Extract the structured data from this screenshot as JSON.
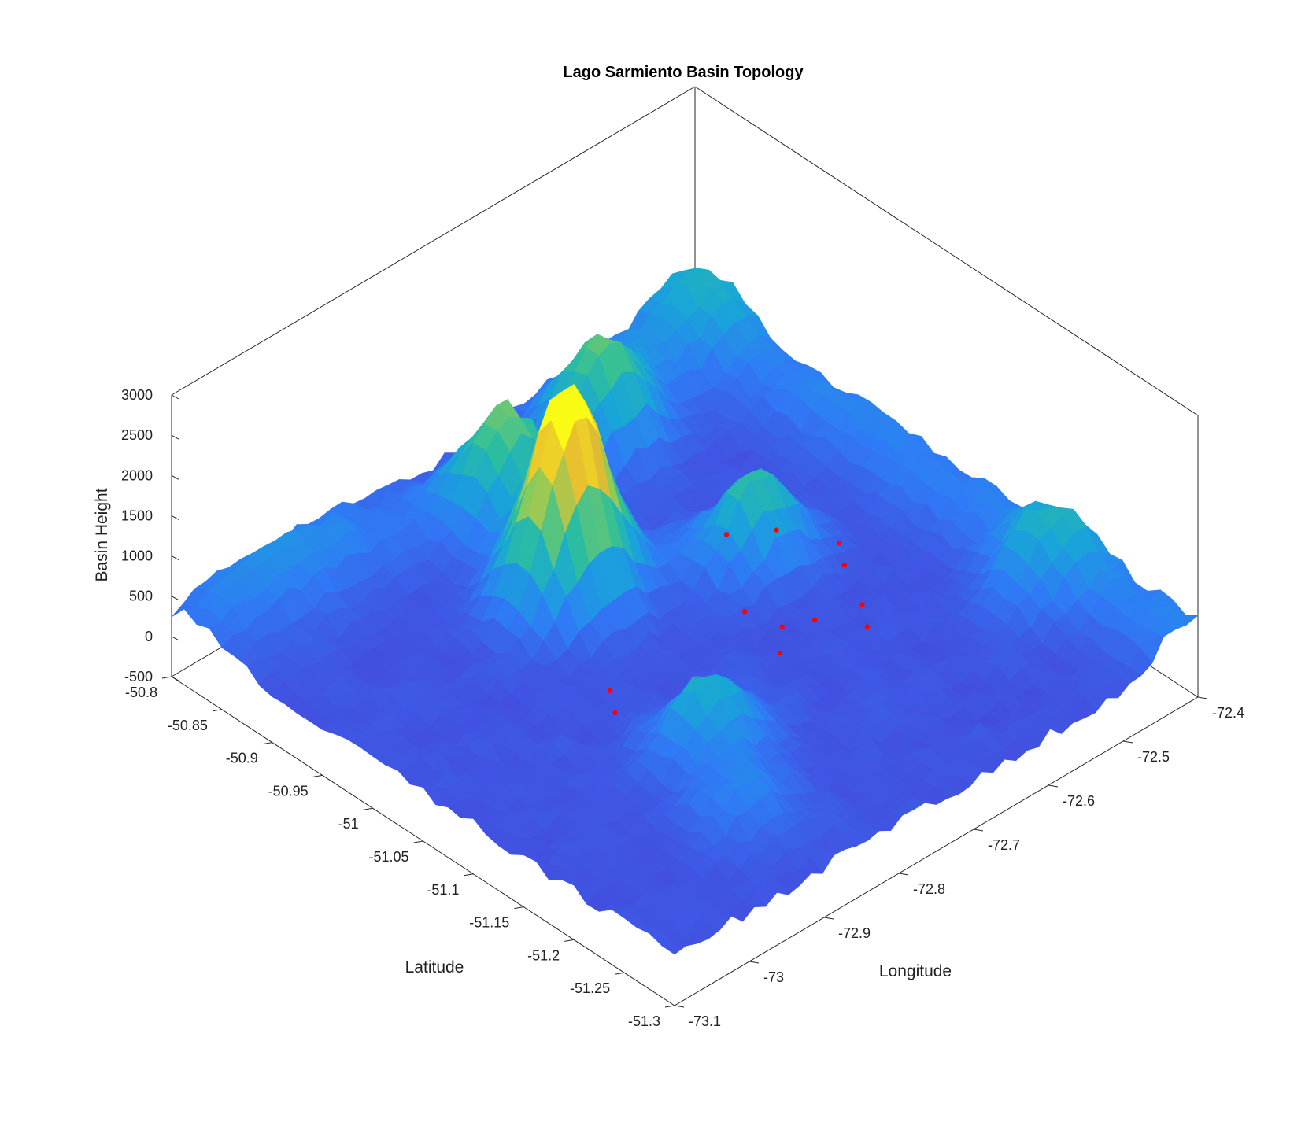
{
  "chart_data": {
    "type": "surface",
    "title": "Lago Sarmiento Basin Topology",
    "xlabel": "Longitude",
    "ylabel": "Latitude",
    "zlabel": "Basin Height",
    "xlim": [
      -73.1,
      -72.4
    ],
    "ylim": [
      -51.3,
      -50.8
    ],
    "zlim": [
      -500,
      3000
    ],
    "x_ticks": [
      "-73.1",
      "-73",
      "-72.9",
      "-72.8",
      "-72.7",
      "-72.6",
      "-72.5",
      "-72.4"
    ],
    "y_ticks": [
      "-50.8",
      "-50.85",
      "-50.9",
      "-50.95",
      "-51",
      "-51.05",
      "-51.1",
      "-51.15",
      "-51.2",
      "-51.25",
      "-51.3"
    ],
    "z_ticks": [
      "-500",
      "0",
      "500",
      "1000",
      "1500",
      "2000",
      "2500",
      "3000"
    ],
    "colormap": [
      "#3e26a8",
      "#4250e0",
      "#2f7bf6",
      "#18a6d8",
      "#2ebf9b",
      "#8fcb5a",
      "#e8ba2f",
      "#f9fb15"
    ],
    "peaks": [
      {
        "lon": -72.8,
        "lat": -50.97,
        "height": 1600
      },
      {
        "lon": -72.77,
        "lat": -50.95,
        "height": 1400
      },
      {
        "lon": -72.75,
        "lat": -50.87,
        "height": 1350
      },
      {
        "lon": -72.6,
        "lat": -50.86,
        "height": 1100
      },
      {
        "lon": -72.62,
        "lat": -51.02,
        "height": 1050
      },
      {
        "lon": -72.85,
        "lat": -51.15,
        "height": 850
      },
      {
        "lon": -72.45,
        "lat": -51.18,
        "height": 600
      },
      {
        "lon": -72.9,
        "lat": -51.22,
        "height": 450
      }
    ],
    "markers": {
      "color": "#ff0000",
      "points": [
        {
          "lon": -72.67,
          "lat": -51.05,
          "height": 0
        },
        {
          "lon": -72.66,
          "lat": -51.08,
          "height": 0
        },
        {
          "lon": -72.69,
          "lat": -51.1,
          "height": 0
        },
        {
          "lon": -72.63,
          "lat": -51.09,
          "height": 0
        },
        {
          "lon": -72.6,
          "lat": -51.12,
          "height": 0
        },
        {
          "lon": -72.58,
          "lat": -51.1,
          "height": 0
        },
        {
          "lon": -72.55,
          "lat": -51.06,
          "height": 0
        },
        {
          "lon": -72.53,
          "lat": -51.04,
          "height": 0
        },
        {
          "lon": -72.6,
          "lat": -50.98,
          "height": 0
        },
        {
          "lon": -72.56,
          "lat": -51.0,
          "height": 0
        },
        {
          "lon": -72.87,
          "lat": -51.07,
          "height": 0
        },
        {
          "lon": -72.85,
          "lat": -51.05,
          "height": 0
        }
      ]
    }
  }
}
